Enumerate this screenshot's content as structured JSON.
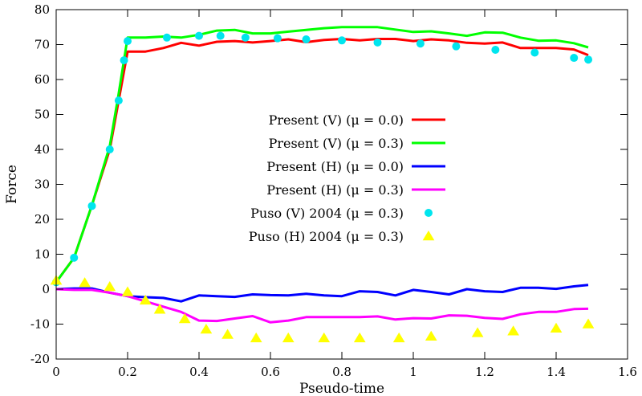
{
  "chart_data": {
    "type": "line",
    "xlabel": "Pseudo-time",
    "ylabel": "Force",
    "xlim": [
      0,
      1.6
    ],
    "ylim": [
      -20,
      80
    ],
    "xticks": [
      0,
      0.2,
      0.4,
      0.6,
      0.8,
      1,
      1.2,
      1.4,
      1.6
    ],
    "xtick_labels": [
      "0",
      "0.2",
      "0.4",
      "0.6",
      "0.8",
      "1",
      "1.2",
      "1.4",
      "1.6"
    ],
    "yticks": [
      -20,
      -10,
      0,
      10,
      20,
      30,
      40,
      50,
      60,
      70,
      80
    ],
    "ytick_labels": [
      "-20",
      "-10",
      "0",
      "10",
      "20",
      "30",
      "40",
      "50",
      "60",
      "70",
      "80"
    ],
    "grid": false,
    "legend_position": "center-right",
    "series": [
      {
        "name": "Present (V) (μ = 0.0)",
        "kind": "line",
        "color": "#ff0000",
        "x": [
          0,
          0.05,
          0.1,
          0.15,
          0.175,
          0.2,
          0.25,
          0.3,
          0.35,
          0.4,
          0.45,
          0.5,
          0.55,
          0.6,
          0.65,
          0.7,
          0.75,
          0.8,
          0.85,
          0.9,
          0.95,
          1.0,
          1.05,
          1.1,
          1.15,
          1.2,
          1.25,
          1.3,
          1.35,
          1.4,
          1.45,
          1.49
        ],
        "y": [
          2,
          9,
          24,
          40,
          54,
          68,
          68,
          69,
          70.5,
          69.7,
          70.8,
          71,
          70.6,
          71,
          71.5,
          70.7,
          71.3,
          71.6,
          71.2,
          71.6,
          71.6,
          71,
          71.5,
          71.2,
          70.5,
          70.3,
          70.6,
          69,
          69,
          69,
          68.6,
          67
        ]
      },
      {
        "name": "Present (V) (μ = 0.3)",
        "kind": "line",
        "color": "#00ff00",
        "x": [
          0,
          0.05,
          0.1,
          0.15,
          0.175,
          0.2,
          0.25,
          0.3,
          0.35,
          0.4,
          0.45,
          0.5,
          0.55,
          0.6,
          0.65,
          0.7,
          0.75,
          0.8,
          0.85,
          0.9,
          0.95,
          1.0,
          1.05,
          1.1,
          1.15,
          1.2,
          1.25,
          1.3,
          1.35,
          1.4,
          1.45,
          1.49
        ],
        "y": [
          2,
          9,
          24,
          41,
          56,
          72,
          72,
          72.3,
          72,
          72.8,
          74,
          74.2,
          73.2,
          73.2,
          73.7,
          74.2,
          74.7,
          75,
          75,
          75,
          74.3,
          73.6,
          73.8,
          73.2,
          72.5,
          73.5,
          73.4,
          72,
          71.1,
          71.2,
          70.4,
          69.2
        ]
      },
      {
        "name": "Present (H) (μ = 0.0)",
        "kind": "line",
        "color": "#0000ff",
        "x": [
          0,
          0.05,
          0.1,
          0.15,
          0.2,
          0.25,
          0.3,
          0.35,
          0.4,
          0.45,
          0.5,
          0.55,
          0.6,
          0.65,
          0.7,
          0.75,
          0.8,
          0.85,
          0.9,
          0.95,
          1.0,
          1.05,
          1.1,
          1.15,
          1.2,
          1.25,
          1.3,
          1.35,
          1.4,
          1.45,
          1.49
        ],
        "y": [
          0,
          0.2,
          0.2,
          -1,
          -2,
          -2.3,
          -2.5,
          -3.5,
          -1.8,
          -2,
          -2.2,
          -1.5,
          -1.7,
          -1.8,
          -1.3,
          -1.8,
          -2,
          -0.6,
          -0.8,
          -1.8,
          -0.2,
          -0.8,
          -1.5,
          0,
          -0.6,
          -0.8,
          0.4,
          0.4,
          0.1,
          0.8,
          1.2
        ]
      },
      {
        "name": "Present (H) (μ = 0.3)",
        "kind": "line",
        "color": "#ff00ff",
        "x": [
          0,
          0.05,
          0.1,
          0.15,
          0.2,
          0.25,
          0.3,
          0.35,
          0.4,
          0.45,
          0.5,
          0.55,
          0.6,
          0.65,
          0.7,
          0.75,
          0.8,
          0.85,
          0.9,
          0.95,
          1.0,
          1.05,
          1.1,
          1.15,
          1.2,
          1.25,
          1.3,
          1.35,
          1.4,
          1.45,
          1.49
        ],
        "y": [
          0,
          -0.2,
          -0.2,
          -1,
          -2,
          -3.5,
          -5,
          -6.5,
          -9,
          -9.1,
          -8.4,
          -7.7,
          -9.5,
          -9,
          -8,
          -8,
          -8,
          -8,
          -7.8,
          -8.7,
          -8.3,
          -8.4,
          -7.5,
          -7.6,
          -8.2,
          -8.5,
          -7.2,
          -6.5,
          -6.5,
          -5.7,
          -5.6
        ]
      },
      {
        "name": "Puso (V) 2004 (μ = 0.3)",
        "kind": "points",
        "marker": "circle",
        "color": "#00e5ee",
        "x": [
          0,
          0.05,
          0.1,
          0.15,
          0.175,
          0.19,
          0.2,
          0.31,
          0.4,
          0.46,
          0.53,
          0.62,
          0.7,
          0.8,
          0.9,
          1.02,
          1.12,
          1.23,
          1.34,
          1.45,
          1.49
        ],
        "y": [
          2,
          9,
          23.8,
          40,
          54,
          65.5,
          71,
          72,
          72.5,
          72.5,
          72,
          71.8,
          71.5,
          71.2,
          70.6,
          70.3,
          69.5,
          68.5,
          67.7,
          66.2,
          65.7
        ]
      },
      {
        "name": "Puso (H) 2004 (μ = 0.3)",
        "kind": "points",
        "marker": "triangle",
        "color": "#ffff00",
        "x": [
          0,
          0.08,
          0.15,
          0.2,
          0.25,
          0.29,
          0.36,
          0.42,
          0.48,
          0.56,
          0.65,
          0.75,
          0.85,
          0.96,
          1.05,
          1.18,
          1.28,
          1.4,
          1.49
        ],
        "y": [
          2.5,
          1.8,
          0.7,
          -0.8,
          -3.2,
          -5.8,
          -8.5,
          -11.5,
          -13,
          -14,
          -14,
          -14,
          -14,
          -14,
          -13.5,
          -12.5,
          -12,
          -11.2,
          -10
        ]
      }
    ]
  }
}
